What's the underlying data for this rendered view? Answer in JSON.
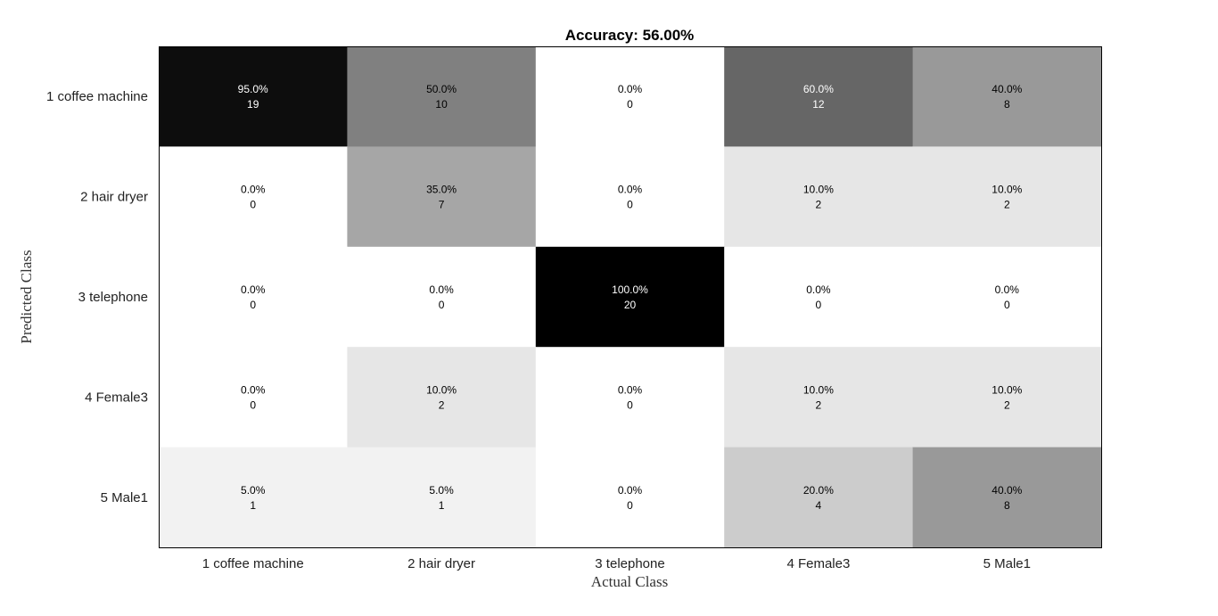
{
  "chart_data": {
    "type": "heatmap",
    "title": "Accuracy: 56.00%",
    "xlabel": "Actual Class",
    "ylabel": "Predicted Class",
    "x_categories": [
      "1 coffee machine",
      "2 hair dryer",
      "3 telephone",
      "4 Female3",
      "5 Male1"
    ],
    "y_categories": [
      "1 coffee machine",
      "2 hair dryer",
      "3 telephone",
      "4 Female3",
      "5 Male1"
    ],
    "counts": [
      [
        19,
        10,
        0,
        12,
        8
      ],
      [
        0,
        7,
        0,
        2,
        2
      ],
      [
        0,
        0,
        20,
        0,
        0
      ],
      [
        0,
        2,
        0,
        2,
        2
      ],
      [
        1,
        1,
        0,
        4,
        8
      ]
    ],
    "percents": [
      [
        "95.0%",
        "50.0%",
        "0.0%",
        "60.0%",
        "40.0%"
      ],
      [
        "0.0%",
        "35.0%",
        "0.0%",
        "10.0%",
        "10.0%"
      ],
      [
        "0.0%",
        "0.0%",
        "100.0%",
        "0.0%",
        "0.0%"
      ],
      [
        "0.0%",
        "10.0%",
        "0.0%",
        "10.0%",
        "10.0%"
      ],
      [
        "5.0%",
        "5.0%",
        "0.0%",
        "20.0%",
        "40.0%"
      ]
    ],
    "colormap": "gray (white = 0%, black = 100%)",
    "grid": false,
    "colors": {
      "text_dark": "#000000",
      "text_light": "#ffffff",
      "frame": "#000000"
    }
  }
}
